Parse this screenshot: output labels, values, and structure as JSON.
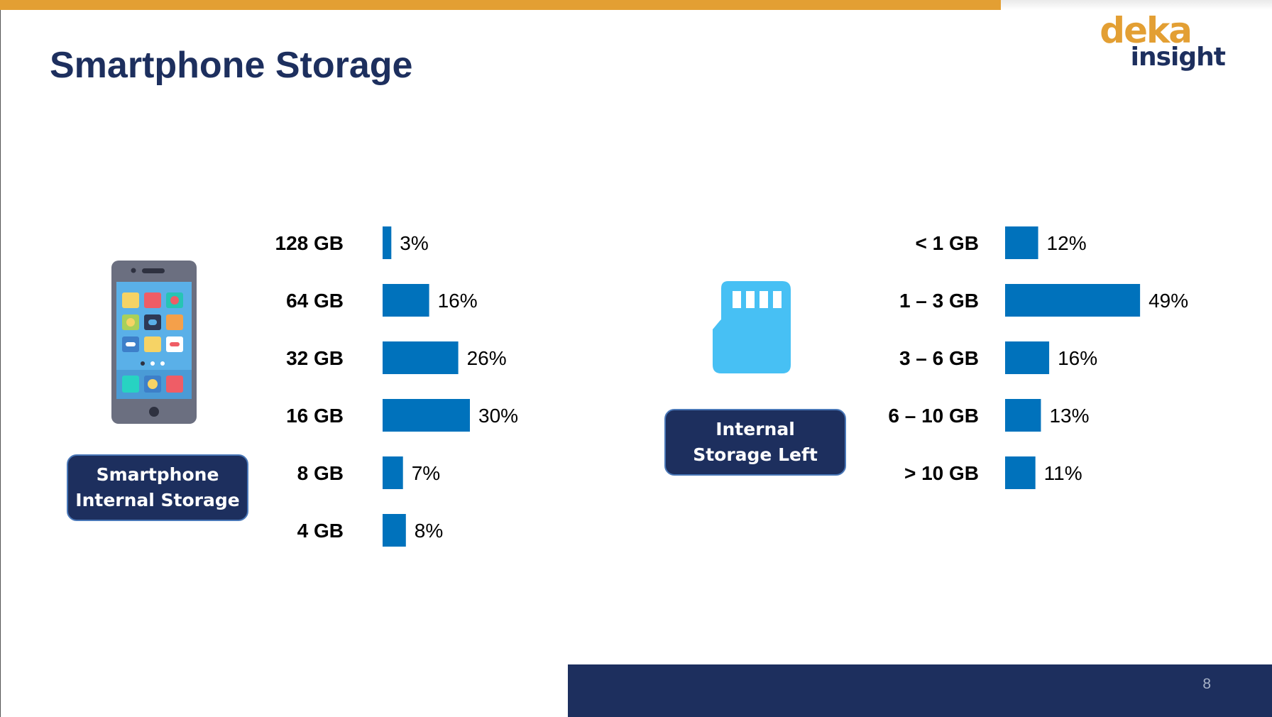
{
  "slide": {
    "title": "Smartphone Storage",
    "page_number": "8"
  },
  "logo": {
    "line1": "deka",
    "line2": "insight"
  },
  "labels": {
    "phone_tag": [
      "Smartphone",
      "Internal Storage"
    ],
    "storage_tag": [
      "Internal",
      "Storage Left"
    ]
  },
  "colors": {
    "bar": "#0072bc",
    "title": "#1d2f5e",
    "accent": "#e39f33",
    "footer": "#1d2f5e",
    "phone_icon_fill": "#47c0f4"
  },
  "chart_data": [
    {
      "type": "bar",
      "orientation": "horizontal",
      "categories": [
        "128 GB",
        "64 GB",
        "32 GB",
        "16 GB",
        "8 GB",
        "4 GB"
      ],
      "values": [
        3,
        16,
        26,
        30,
        7,
        8
      ],
      "value_labels": [
        "3%",
        "16%",
        "26%",
        "30%",
        "7%",
        "8%"
      ],
      "unit": "%",
      "title": ""
    },
    {
      "type": "bar",
      "orientation": "horizontal",
      "categories": [
        "< 1 GB",
        "1 – 3 GB",
        "3 – 6 GB",
        "6 – 10 GB",
        "> 10 GB"
      ],
      "values": [
        12,
        49,
        16,
        13,
        11
      ],
      "value_labels": [
        "12%",
        "49%",
        "16%",
        "13%",
        "11%"
      ],
      "unit": "%",
      "title": ""
    }
  ]
}
